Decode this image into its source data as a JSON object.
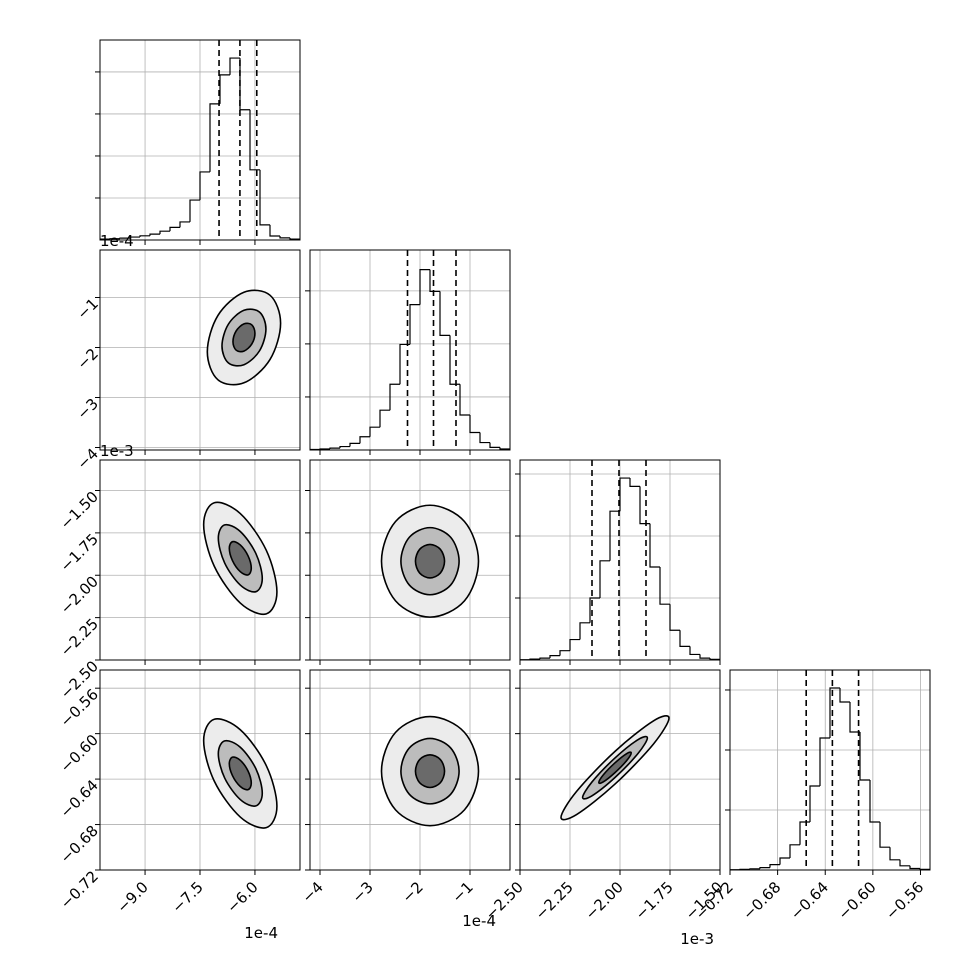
{
  "chart_data": {
    "type": "corner",
    "line_color": "#000000",
    "grid_color": "#b0b0b0",
    "contour_fills": [
      "#ececec",
      "#bcbcbc",
      "#6a6a6a"
    ],
    "params": [
      {
        "x_axis": {
          "lim": [
            -10.23,
            -4.77
          ],
          "offset": "1e-4",
          "ticks": [
            {
              "value": -9,
              "label": "−9.0"
            },
            {
              "value": -7.5,
              "label": "−7.5"
            },
            {
              "value": -6,
              "label": "−6.0"
            }
          ]
        }
      },
      {
        "x_axis": {
          "lim": [
            -4.2,
            -0.2
          ],
          "offset": "1e-4",
          "ticks": [
            {
              "value": -4,
              "label": "−4"
            },
            {
              "value": -3,
              "label": "−3"
            },
            {
              "value": -2,
              "label": "−2"
            },
            {
              "value": -1,
              "label": "−1"
            }
          ]
        },
        "y_axis": {
          "lim": [
            -4.05,
            -0.05
          ],
          "offset": "1e-4",
          "ticks": [
            {
              "value": -4,
              "label": "−4"
            },
            {
              "value": -3,
              "label": "−3"
            },
            {
              "value": -2,
              "label": "−2"
            },
            {
              "value": -1,
              "label": "−1"
            }
          ]
        }
      },
      {
        "x_axis": {
          "lim": [
            -2.5,
            -1.5
          ],
          "offset": "1e-3",
          "ticks": [
            {
              "value": -2.5,
              "label": "−2.50"
            },
            {
              "value": -2.25,
              "label": "−2.25"
            },
            {
              "value": -2,
              "label": "−2.00"
            },
            {
              "value": -1.75,
              "label": "−1.75"
            },
            {
              "value": -1.5,
              "label": "−1.50"
            }
          ]
        },
        "y_axis": {
          "lim": [
            -2.5,
            -1.32
          ],
          "offset": "1e-3",
          "ticks": [
            {
              "value": -2.5,
              "label": "−2.50"
            },
            {
              "value": -2.25,
              "label": "−2.25"
            },
            {
              "value": -2,
              "label": "−2.00"
            },
            {
              "value": -1.75,
              "label": "−1.75"
            },
            {
              "value": -1.5,
              "label": "−1.50"
            }
          ]
        }
      },
      {
        "x_axis": {
          "lim": [
            -0.72,
            -0.552
          ],
          "ticks": [
            {
              "value": -0.72,
              "label": "−0.72"
            },
            {
              "value": -0.68,
              "label": "−0.68"
            },
            {
              "value": -0.64,
              "label": "−0.64"
            },
            {
              "value": -0.6,
              "label": "−0.60"
            },
            {
              "value": -0.56,
              "label": "−0.56"
            }
          ]
        },
        "y_axis": {
          "lim": [
            -0.72,
            -0.544
          ],
          "ticks": [
            {
              "value": -0.72,
              "label": "−0.72"
            },
            {
              "value": -0.68,
              "label": "−0.68"
            },
            {
              "value": -0.64,
              "label": "−0.64"
            },
            {
              "value": -0.6,
              "label": "−0.60"
            },
            {
              "value": -0.56,
              "label": "−0.56"
            }
          ]
        }
      }
    ],
    "histograms": [
      {
        "bins": [
          -10.23,
          -9.957,
          -9.684,
          -9.411,
          -9.138,
          -8.865,
          -8.592,
          -8.319,
          -8.046,
          -7.773,
          -7.5,
          -7.227,
          -6.954,
          -6.681,
          -6.408,
          -6.135,
          -5.862,
          -5.589,
          -5.316,
          -5.043,
          -4.77
        ],
        "counts": [
          20,
          30,
          45,
          70,
          100,
          140,
          210,
          300,
          430,
          950,
          1620,
          3240,
          3930,
          4330,
          3100,
          1670,
          360,
          95,
          50,
          20
        ],
        "ylim": [
          0,
          4760
        ],
        "yticks": [
          1000,
          2000,
          3000,
          4000
        ],
        "quantiles": [
          -6.98,
          -6.41,
          -5.95
        ]
      },
      {
        "bins": [
          -4.2,
          -4.0,
          -3.8,
          -3.6,
          -3.4,
          -3.2,
          -3.0,
          -2.8,
          -2.6,
          -2.4,
          -2.2,
          -2.0,
          -1.8,
          -1.6,
          -1.4,
          -1.2,
          -1.0,
          -0.8,
          -0.6,
          -0.4,
          -0.2
        ],
        "counts": [
          10,
          20,
          35,
          65,
          125,
          250,
          430,
          750,
          1240,
          1990,
          2740,
          3400,
          2990,
          2160,
          1240,
          660,
          330,
          140,
          50,
          20
        ],
        "ylim": [
          0,
          3770
        ],
        "yticks": [
          1000,
          2000,
          3000
        ],
        "quantiles": [
          -2.25,
          -1.73,
          -1.28
        ]
      },
      {
        "bins": [
          -2.5,
          -2.45,
          -2.4,
          -2.35,
          -2.3,
          -2.25,
          -2.2,
          -2.15,
          -2.1,
          -2.05,
          -2.0,
          -1.95,
          -1.9,
          -1.85,
          -1.8,
          -1.75,
          -1.7,
          -1.65,
          -1.6,
          -1.55,
          -1.5
        ],
        "counts": [
          5,
          15,
          30,
          70,
          150,
          330,
          600,
          1000,
          1600,
          2400,
          2935,
          2800,
          2200,
          1500,
          900,
          480,
          220,
          90,
          30,
          10
        ],
        "ylim": [
          0,
          3226
        ],
        "yticks": [
          1000,
          2000,
          3000
        ],
        "quantiles": [
          -2.14,
          -2.005,
          -1.87
        ]
      },
      {
        "bins": [
          -0.72,
          -0.7116,
          -0.7032,
          -0.6948,
          -0.6864,
          -0.678,
          -0.6696,
          -0.6612,
          -0.6528,
          -0.6444,
          -0.636,
          -0.6276,
          -0.6192,
          -0.6108,
          -0.6024,
          -0.594,
          -0.5856,
          -0.5772,
          -0.5688,
          -0.5604,
          -0.552
        ],
        "counts": [
          5,
          10,
          20,
          40,
          90,
          200,
          420,
          800,
          1400,
          2200,
          3033,
          2800,
          2300,
          1500,
          800,
          380,
          170,
          70,
          25,
          10
        ],
        "ylim": [
          0,
          3333
        ],
        "yticks": [
          1000,
          2000,
          3000
        ],
        "quantiles": [
          -0.656,
          -0.634,
          -0.612
        ]
      }
    ],
    "pairs": [
      [
        {
          "contours": [
            {
              "x": [
                -5.3,
                -5.59,
                -6.3,
                -7.01,
                -7.3,
                -7.01,
                -6.3,
                -5.59
              ],
              "y": [
                -1.515,
                -0.954,
                -0.894,
                -1.359,
                -2.085,
                -2.646,
                -2.706,
                -2.241
              ]
            },
            {
              "x": [
                -5.7,
                -5.874,
                -6.3,
                -6.726,
                -6.9,
                -6.726,
                -6.3,
                -5.874
              ],
              "y": [
                -1.629,
                -1.292,
                -1.256,
                -1.535,
                -1.971,
                -2.308,
                -2.344,
                -2.065
              ]
            },
            {
              "x": [
                -6.0,
                -6.087,
                -6.3,
                -6.513,
                -6.6,
                -6.513,
                -6.3,
                -6.087
              ],
              "y": [
                -1.715,
                -1.546,
                -1.528,
                -1.668,
                -1.886,
                -2.054,
                -2.072,
                -1.932
              ]
            }
          ]
        }
      ],
      [
        {
          "contours": [
            {
              "x": [
                -5.4,
                -5.69,
                -6.4,
                -7.11,
                -7.4,
                -7.11,
                -6.4,
                -5.69
              ],
              "y": [
                -2.098,
                -1.853,
                -1.636,
                -1.572,
                -1.702,
                -1.947,
                -2.164,
                -2.228
              ]
            },
            {
              "x": [
                -5.8,
                -5.974,
                -6.4,
                -6.826,
                -7.0,
                -6.826,
                -6.4,
                -5.974
              ],
              "y": [
                -2.019,
                -1.872,
                -1.742,
                -1.703,
                -1.781,
                -1.928,
                -2.058,
                -2.097
              ]
            },
            {
              "x": [
                -6.1,
                -6.187,
                -6.4,
                -6.613,
                -6.7,
                -6.613,
                -6.4,
                -6.187
              ],
              "y": [
                -1.959,
                -1.886,
                -1.821,
                -1.802,
                -1.841,
                -1.914,
                -1.979,
                -1.998
              ]
            }
          ]
        },
        {
          "contours": [
            {
              "x": [
                -0.83,
                -1.111,
                -1.8,
                -2.489,
                -2.77,
                -2.489,
                -1.8,
                -1.111
              ],
              "y": [
                -1.917,
                -1.683,
                -1.587,
                -1.683,
                -1.917,
                -2.151,
                -2.247,
                -2.151
              ]
            },
            {
              "x": [
                -1.218,
                -1.387,
                -1.8,
                -2.213,
                -2.382,
                -2.213,
                -1.8,
                -1.387
              ],
              "y": [
                -1.917,
                -1.776,
                -1.719,
                -1.776,
                -1.917,
                -2.058,
                -2.115,
                -2.058
              ]
            },
            {
              "x": [
                -1.509,
                -1.593,
                -1.8,
                -2.007,
                -2.091,
                -2.007,
                -1.8,
                -1.593
              ],
              "y": [
                -1.917,
                -1.847,
                -1.818,
                -1.847,
                -1.917,
                -1.987,
                -2.016,
                -1.987
              ]
            }
          ]
        }
      ],
      [
        {
          "contours": [
            {
              "x": [
                -5.4,
                -5.69,
                -6.4,
                -7.11,
                -7.4,
                -7.11,
                -6.4,
                -5.69
              ],
              "y": [
                -0.6638,
                -0.6282,
                -0.5966,
                -0.5873,
                -0.6062,
                -0.6418,
                -0.6734,
                -0.6827
              ]
            },
            {
              "x": [
                -5.8,
                -5.974,
                -6.4,
                -6.826,
                -7.0,
                -6.826,
                -6.4,
                -5.974
              ],
              "y": [
                -0.6523,
                -0.6309,
                -0.612,
                -0.6064,
                -0.6177,
                -0.6391,
                -0.658,
                -0.6636
              ]
            },
            {
              "x": [
                -6.1,
                -6.187,
                -6.4,
                -6.613,
                -6.7,
                -6.613,
                -6.4,
                -6.187
              ],
              "y": [
                -0.6436,
                -0.633,
                -0.6235,
                -0.6207,
                -0.6264,
                -0.637,
                -0.6465,
                -0.6493
              ]
            }
          ]
        },
        {
          "contours": [
            {
              "x": [
                -0.83,
                -1.111,
                -1.8,
                -2.489,
                -2.77,
                -2.489,
                -1.8,
                -1.111
              ],
              "y": [
                -0.633,
                -0.5989,
                -0.585,
                -0.5989,
                -0.633,
                -0.6671,
                -0.681,
                -0.6671
              ]
            },
            {
              "x": [
                -1.218,
                -1.387,
                -1.8,
                -2.213,
                -2.382,
                -2.213,
                -1.8,
                -1.387
              ],
              "y": [
                -0.633,
                -0.6126,
                -0.6042,
                -0.6126,
                -0.633,
                -0.6534,
                -0.6618,
                -0.6534
              ]
            },
            {
              "x": [
                -1.509,
                -1.593,
                -1.8,
                -2.007,
                -2.091,
                -2.007,
                -1.8,
                -1.593
              ],
              "y": [
                -0.633,
                -0.6228,
                -0.6186,
                -0.6228,
                -0.633,
                -0.6432,
                -0.6474,
                -0.6432
              ]
            }
          ]
        },
        {
          "contours": [
            {
              "x": [
                -1.755,
                -1.833,
                -2.025,
                -2.217,
                -2.295,
                -2.217,
                -2.025,
                -1.833
              ],
              "y": [
                -0.5863,
                -0.5888,
                -0.6156,
                -0.6508,
                -0.6737,
                -0.6712,
                -0.6444,
                -0.6092
              ]
            },
            {
              "x": [
                -1.863,
                -1.91,
                -2.025,
                -2.14,
                -2.187,
                -2.14,
                -2.025,
                -1.91
              ],
              "y": [
                -0.6038,
                -0.6053,
                -0.6214,
                -0.6425,
                -0.6562,
                -0.6547,
                -0.6386,
                -0.6175
              ]
            },
            {
              "x": [
                -1.944,
                -1.967,
                -2.025,
                -2.083,
                -2.106,
                -2.083,
                -2.025,
                -1.967
              ],
              "y": [
                -0.6169,
                -0.6176,
                -0.6257,
                -0.6362,
                -0.6431,
                -0.6424,
                -0.6343,
                -0.6238
              ]
            }
          ]
        }
      ]
    ]
  }
}
